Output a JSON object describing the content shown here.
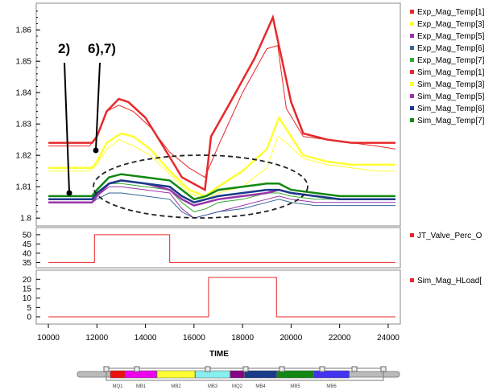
{
  "chart_data": [
    {
      "type": "line",
      "panel": "top",
      "ylim": [
        1.798,
        1.868
      ],
      "yticks": [
        "1.8",
        "1.81",
        "1.82",
        "1.83",
        "1.84",
        "1.85",
        "1.86"
      ],
      "annotations": [
        "2)",
        "6),7)"
      ],
      "series": [
        {
          "name": "Exp_Mag_Temp[1]",
          "color": "#e8282a",
          "x": [
            10000,
            11700,
            12000,
            12400,
            12900,
            13500,
            14200,
            15000,
            15800,
            16450,
            17000,
            18000,
            19000,
            19450,
            19800,
            20500,
            21500,
            22500,
            23500,
            24300
          ],
          "y": [
            1.823,
            1.823,
            1.826,
            1.834,
            1.836,
            1.834,
            1.829,
            1.821,
            1.816,
            1.813,
            1.823,
            1.84,
            1.854,
            1.855,
            1.835,
            1.826,
            1.825,
            1.824,
            1.823,
            1.822
          ]
        },
        {
          "name": "Exp_Mag_Temp[3]",
          "color": "#ffff33",
          "x": [
            10000,
            11700,
            12000,
            12400,
            12900,
            13500,
            14200,
            15000,
            15800,
            16450,
            17000,
            18000,
            19000,
            19450,
            19800,
            20500,
            21500,
            22500,
            23500,
            24300
          ],
          "y": [
            1.815,
            1.815,
            1.817,
            1.822,
            1.825,
            1.823,
            1.82,
            1.814,
            1.808,
            1.806,
            1.808,
            1.81,
            1.816,
            1.826,
            1.824,
            1.819,
            1.817,
            1.816,
            1.815,
            1.815
          ]
        },
        {
          "name": "Exp_Mag_Temp[5]",
          "color": "#9933aa",
          "x": [
            10000,
            11800,
            12000,
            12500,
            13000,
            14000,
            15000,
            15500,
            16000,
            16500,
            17000,
            18000,
            19000,
            19500,
            20000,
            21000,
            22000,
            23000,
            24300
          ],
          "y": [
            1.806,
            1.806,
            1.807,
            1.81,
            1.81,
            1.809,
            1.808,
            1.803,
            1.8,
            1.801,
            1.802,
            1.804,
            1.806,
            1.807,
            1.806,
            1.805,
            1.805,
            1.805,
            1.805
          ]
        },
        {
          "name": "Exp_Mag_Temp[6]",
          "color": "#336699",
          "x": [
            10000,
            11800,
            12000,
            12500,
            13000,
            14000,
            15000,
            15500,
            16000,
            16500,
            17000,
            18000,
            19000,
            19500,
            20000,
            21000,
            22000,
            23000,
            24300
          ],
          "y": [
            1.805,
            1.805,
            1.806,
            1.808,
            1.808,
            1.807,
            1.806,
            1.802,
            1.8,
            1.801,
            1.802,
            1.803,
            1.805,
            1.806,
            1.805,
            1.804,
            1.804,
            1.804,
            1.804
          ]
        },
        {
          "name": "Exp_Mag_Temp[7]",
          "color": "#33aa33",
          "x": [
            10000,
            11800,
            12000,
            12500,
            13000,
            14000,
            15000,
            15500,
            16000,
            16500,
            17000,
            18000,
            19000,
            19500,
            20000,
            21000,
            22000,
            23000,
            24300
          ],
          "y": [
            1.807,
            1.807,
            1.808,
            1.811,
            1.811,
            1.81,
            1.809,
            1.805,
            1.802,
            1.803,
            1.805,
            1.806,
            1.808,
            1.808,
            1.807,
            1.806,
            1.806,
            1.806,
            1.806
          ]
        },
        {
          "name": "Sim_Mag_Temp[1]",
          "color": "#e8282a",
          "x": [
            10000,
            11800,
            12000,
            12400,
            12900,
            13300,
            14000,
            14800,
            15500,
            16450,
            16700,
            17500,
            18500,
            19250,
            19500,
            20000,
            20500,
            21500,
            22500,
            23500,
            24300
          ],
          "y": [
            1.824,
            1.824,
            1.826,
            1.834,
            1.838,
            1.837,
            1.832,
            1.822,
            1.813,
            1.809,
            1.826,
            1.837,
            1.851,
            1.864,
            1.855,
            1.837,
            1.827,
            1.825,
            1.824,
            1.824,
            1.824
          ]
        },
        {
          "name": "Sim_Mag_Temp[3]",
          "color": "#ffff33",
          "x": [
            10000,
            11800,
            12000,
            12400,
            13000,
            13500,
            14200,
            15000,
            15800,
            16450,
            17000,
            18000,
            19000,
            19500,
            20000,
            20500,
            21500,
            22500,
            23500,
            24300
          ],
          "y": [
            1.816,
            1.816,
            1.818,
            1.824,
            1.827,
            1.826,
            1.822,
            1.815,
            1.809,
            1.807,
            1.81,
            1.815,
            1.822,
            1.832,
            1.826,
            1.82,
            1.818,
            1.817,
            1.817,
            1.817
          ]
        },
        {
          "name": "Sim_Mag_Temp[5]",
          "color": "#9933aa",
          "x": [
            10000,
            11800,
            12000,
            12500,
            13000,
            14000,
            15000,
            15500,
            16000,
            16500,
            17000,
            18000,
            19000,
            19500,
            20000,
            21000,
            22000,
            23000,
            24300
          ],
          "y": [
            1.805,
            1.805,
            1.807,
            1.811,
            1.812,
            1.811,
            1.809,
            1.806,
            1.804,
            1.805,
            1.806,
            1.807,
            1.808,
            1.809,
            1.808,
            1.807,
            1.806,
            1.806,
            1.806
          ]
        },
        {
          "name": "Sim_Mag_Temp[6]",
          "color": "#1a3a8a",
          "x": [
            10000,
            11800,
            12000,
            12500,
            13000,
            14000,
            15000,
            15500,
            16000,
            16500,
            17000,
            18000,
            19000,
            19500,
            20000,
            21000,
            22000,
            23000,
            24300
          ],
          "y": [
            1.806,
            1.806,
            1.808,
            1.811,
            1.812,
            1.811,
            1.81,
            1.807,
            1.805,
            1.806,
            1.807,
            1.808,
            1.809,
            1.809,
            1.808,
            1.807,
            1.806,
            1.806,
            1.806
          ]
        },
        {
          "name": "Sim_Mag_Temp[7]",
          "color": "#118811",
          "x": [
            10000,
            11800,
            12000,
            12500,
            13000,
            14000,
            15000,
            15500,
            16000,
            16500,
            17000,
            18000,
            19000,
            19500,
            20000,
            21000,
            22000,
            23000,
            24300
          ],
          "y": [
            1.807,
            1.807,
            1.809,
            1.813,
            1.814,
            1.813,
            1.812,
            1.809,
            1.806,
            1.807,
            1.809,
            1.81,
            1.811,
            1.811,
            1.809,
            1.808,
            1.807,
            1.807,
            1.807
          ]
        }
      ]
    },
    {
      "type": "line",
      "panel": "middle",
      "ylim": [
        33,
        53
      ],
      "yticks": [
        "35",
        "40",
        "45",
        "50"
      ],
      "series": [
        {
          "name": "JT_Valve_Perc_O",
          "color": "#e8282a",
          "x": [
            10000,
            11900,
            11900,
            15000,
            15000,
            24300
          ],
          "y": [
            35,
            35,
            50,
            50,
            35,
            35
          ]
        }
      ]
    },
    {
      "type": "line",
      "panel": "bottom",
      "ylim": [
        -3,
        24
      ],
      "yticks": [
        "0",
        "5",
        "10",
        "15",
        "20"
      ],
      "xlabel": "TIME",
      "xlim": [
        9500,
        24500
      ],
      "xticks": [
        "10000",
        "12000",
        "14000",
        "16000",
        "18000",
        "20000",
        "22000",
        "24000"
      ],
      "series": [
        {
          "name": "Sim_Mag_HLoad[",
          "color": "#e8282a",
          "x": [
            10000,
            16600,
            16600,
            19400,
            19400,
            24300
          ],
          "y": [
            0,
            0,
            21,
            21,
            0,
            0
          ]
        }
      ]
    }
  ],
  "scrollbar": {
    "segments": [
      {
        "label": "MQ1",
        "color": "#ee1111"
      },
      {
        "label": "MB1",
        "color": "#ee00ee"
      },
      {
        "label": "MB2",
        "color": "#ffff33"
      },
      {
        "label": "MB3",
        "color": "#88eeee"
      },
      {
        "label": "MQ2",
        "color": "#880088"
      },
      {
        "label": "MB4",
        "color": "#1a3a8a"
      },
      {
        "label": "MB5",
        "color": "#118811"
      },
      {
        "label": "MB6",
        "color": "#4433ee"
      }
    ]
  }
}
